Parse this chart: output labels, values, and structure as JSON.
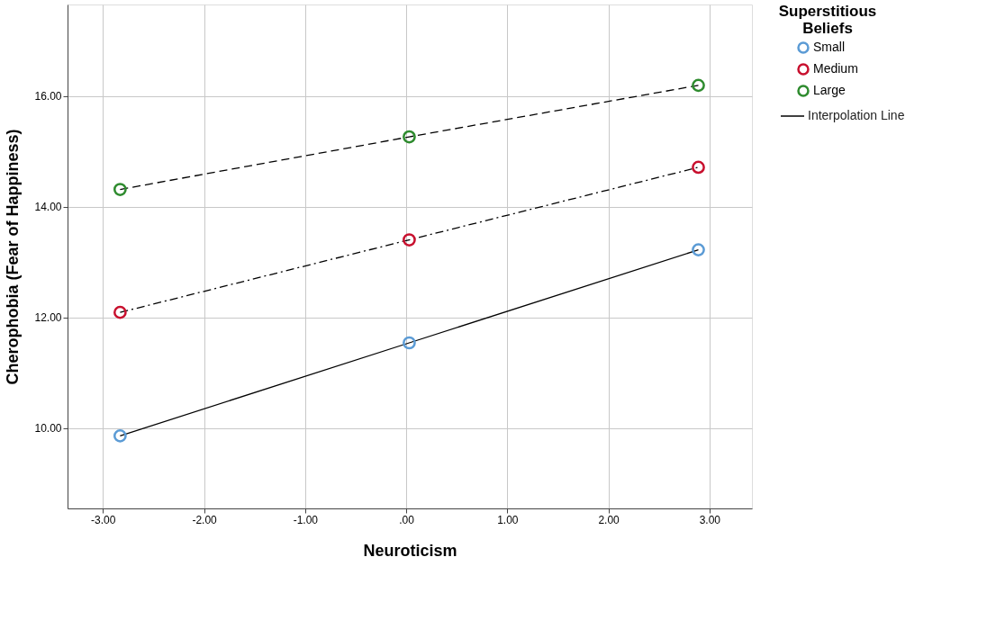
{
  "chart_data": {
    "type": "line",
    "xlabel": "Neuroticism",
    "ylabel": "Cherophobia (Fear of Happiness)",
    "legend_title": "Superstitious Beliefs",
    "legend": "right",
    "grid": true,
    "marker": "circle",
    "x": [
      -2.83,
      0.03,
      2.89
    ],
    "xlim": [
      -3.35,
      3.42
    ],
    "xticks": [
      {
        "value": -3,
        "label": "-3.00"
      },
      {
        "value": -2,
        "label": "-2.00"
      },
      {
        "value": -1,
        "label": "-1.00"
      },
      {
        "value": 0,
        "label": ".00"
      },
      {
        "value": 1,
        "label": "1.00"
      },
      {
        "value": 2,
        "label": "2.00"
      },
      {
        "value": 3,
        "label": "3.00"
      }
    ],
    "ylim": [
      8.55,
      17.65
    ],
    "yticks": [
      {
        "value": 10,
        "label": "10.00"
      },
      {
        "value": 12,
        "label": "12.00"
      },
      {
        "value": 14,
        "label": "14.00"
      },
      {
        "value": 16,
        "label": "16.00"
      }
    ],
    "series": [
      {
        "name": "Small",
        "color": "#5b9bd5",
        "line_style": "solid",
        "values": [
          9.86,
          11.54,
          13.22
        ]
      },
      {
        "name": "Medium",
        "color": "#c8102e",
        "line_style": "dashdot",
        "values": [
          12.09,
          13.4,
          14.71
        ]
      },
      {
        "name": "Large",
        "color": "#2e8b2e",
        "line_style": "dashed",
        "values": [
          14.31,
          15.26,
          16.19
        ]
      }
    ],
    "annotations": [
      "Interpolation Line"
    ]
  }
}
